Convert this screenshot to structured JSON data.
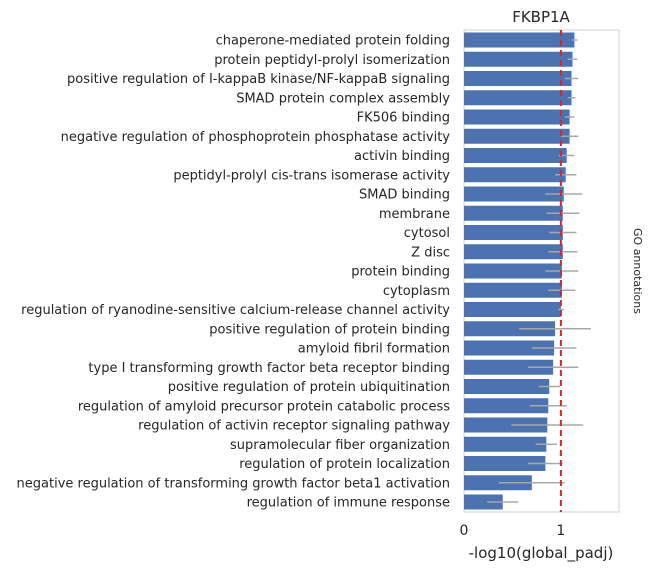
{
  "chart_data": {
    "type": "bar",
    "orientation": "horizontal",
    "title": "FKBP1A",
    "xlabel": "-log10(global_padj)",
    "right_label": "GO annotations",
    "xlim": [
      0,
      1.6
    ],
    "xticks": [
      "0",
      "1"
    ],
    "xtick_values": [
      0,
      1
    ],
    "threshold_line": 1.0,
    "threshold_color": "#d62728",
    "bar_color": "#4c72b0",
    "errorbar_color": "#a8a8a8",
    "categories": [
      "chaperone-mediated protein folding",
      "protein peptidyl-prolyl isomerization",
      "positive regulation of I-kappaB kinase/NF-kappaB signaling",
      "SMAD protein complex assembly",
      "FK506 binding",
      "negative regulation of phosphoprotein phosphatase activity",
      "activin binding",
      "peptidyl-prolyl cis-trans isomerase activity",
      "SMAD binding",
      "membrane",
      "cytosol",
      "Z disc",
      "protein binding",
      "cytoplasm",
      "regulation of ryanodine-sensitive calcium-release channel activity",
      "positive regulation of protein binding",
      "amyloid fibril formation",
      "type I transforming growth factor beta receptor binding",
      "positive regulation of protein ubiquitination",
      "regulation of amyloid precursor protein catabolic process",
      "regulation of activin receptor signaling pathway",
      "supramolecular fiber organization",
      "regulation of protein localization",
      "negative regulation of transforming growth factor beta1 activation",
      "regulation of immune response"
    ],
    "values": [
      1.14,
      1.12,
      1.11,
      1.11,
      1.09,
      1.09,
      1.06,
      1.05,
      1.03,
      1.02,
      1.02,
      1.02,
      1.01,
      1.01,
      1.0,
      0.94,
      0.93,
      0.92,
      0.88,
      0.87,
      0.86,
      0.85,
      0.84,
      0.7,
      0.4
    ],
    "errors": [
      0.03,
      0.05,
      0.07,
      0.04,
      0.05,
      0.09,
      0.08,
      0.11,
      0.19,
      0.17,
      0.14,
      0.15,
      0.17,
      0.14,
      0.03,
      0.37,
      0.23,
      0.26,
      0.11,
      0.19,
      0.37,
      0.11,
      0.18,
      0.34,
      0.16
    ]
  }
}
